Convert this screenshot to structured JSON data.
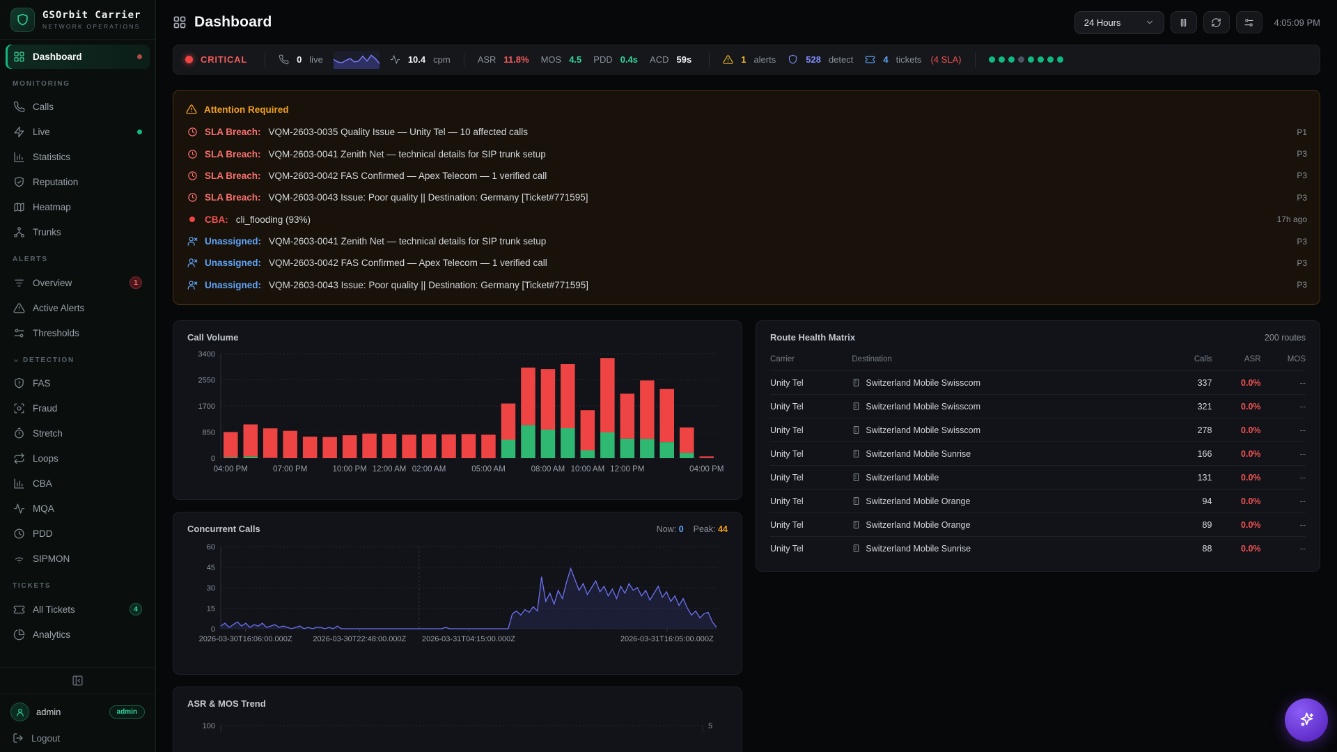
{
  "app": {
    "name": "GSOrbit Carrier",
    "subtitle": "NETWORK OPERATIONS"
  },
  "sidebar": {
    "sections": [
      {
        "label": "",
        "items": [
          {
            "label": "Dashboard",
            "icon": "grid",
            "active": true,
            "right_dot": "#b04a4a"
          }
        ]
      },
      {
        "label": "MONITORING",
        "items": [
          {
            "label": "Calls",
            "icon": "phone"
          },
          {
            "label": "Live",
            "icon": "zap",
            "right_dot": "#10b981"
          },
          {
            "label": "Statistics",
            "icon": "chart"
          },
          {
            "label": "Reputation",
            "icon": "shield-check"
          },
          {
            "label": "Heatmap",
            "icon": "map"
          },
          {
            "label": "Trunks",
            "icon": "network"
          }
        ]
      },
      {
        "label": "ALERTS",
        "items": [
          {
            "label": "Overview",
            "icon": "filter",
            "badge": "1",
            "badge_style": "red"
          },
          {
            "label": "Active Alerts",
            "icon": "alert-triangle"
          },
          {
            "label": "Thresholds",
            "icon": "sliders"
          }
        ]
      },
      {
        "label": "DETECTION",
        "chevron": true,
        "items": [
          {
            "label": "FAS",
            "icon": "shield-alert"
          },
          {
            "label": "Fraud",
            "icon": "scan"
          },
          {
            "label": "Stretch",
            "icon": "timer"
          },
          {
            "label": "Loops",
            "icon": "repeat"
          },
          {
            "label": "CBA",
            "icon": "chart"
          },
          {
            "label": "MQA",
            "icon": "activity"
          },
          {
            "label": "PDD",
            "icon": "clock"
          },
          {
            "label": "SIPMON",
            "icon": "wifi"
          }
        ]
      },
      {
        "label": "TICKETS",
        "items": [
          {
            "label": "All Tickets",
            "icon": "ticket",
            "badge": "4",
            "badge_style": "green"
          },
          {
            "label": "Analytics",
            "icon": "pie"
          }
        ]
      }
    ],
    "user": {
      "name": "admin",
      "badge": "admin"
    },
    "logout": "Logout"
  },
  "header": {
    "title": "Dashboard",
    "range": "24 Hours",
    "clock": "4:05:09 PM"
  },
  "statusbar": {
    "status": "CRITICAL",
    "live": {
      "value": "0",
      "label": "live"
    },
    "sparkline": [
      9,
      6,
      5,
      8,
      10,
      6,
      7,
      13,
      7,
      14,
      10,
      4
    ],
    "cpm": {
      "value": "10.4",
      "label": "cpm"
    },
    "kpis": [
      {
        "label": "ASR",
        "value": "11.8%",
        "color": "#f15b5b"
      },
      {
        "label": "MOS",
        "value": "4.5",
        "color": "#34d399"
      },
      {
        "label": "PDD",
        "value": "0.4s",
        "color": "#34d399"
      },
      {
        "label": "ACD",
        "value": "59s",
        "color": "#f3f4f6"
      }
    ],
    "counters": [
      {
        "icon": "alert-triangle",
        "value": "1",
        "label": "alerts",
        "color": "#fbbf24"
      },
      {
        "icon": "shield",
        "value": "528",
        "label": "detect",
        "color": "#818cf8"
      },
      {
        "icon": "ticket",
        "value": "4",
        "label": "tickets",
        "color": "#60a5fa",
        "suffix": "(4 SLA)",
        "suffix_color": "#f05252"
      }
    ],
    "dots": [
      "#10b981",
      "#10b981",
      "#10b981",
      "#4b5563",
      "#10b981",
      "#10b981",
      "#10b981",
      "#10b981"
    ]
  },
  "attention": {
    "title": "Attention Required",
    "rows": [
      {
        "icon": "clock",
        "label": "SLA Breach:",
        "label_color": "#f87171",
        "text": "VQM-2603-0035 Quality Issue — Unity Tel — 10 affected calls",
        "right": "P1"
      },
      {
        "icon": "clock",
        "label": "SLA Breach:",
        "label_color": "#f87171",
        "text": "VQM-2603-0041 Zenith Net — technical details for SIP trunk setup",
        "right": "P3"
      },
      {
        "icon": "clock",
        "label": "SLA Breach:",
        "label_color": "#f87171",
        "text": "VQM-2603-0042 FAS Confirmed — Apex Telecom — 1 verified call",
        "right": "P3"
      },
      {
        "icon": "clock",
        "label": "SLA Breach:",
        "label_color": "#f87171",
        "text": "VQM-2603-0043 Issue: Poor quality || Destination: Germany [Ticket#771595]",
        "right": "P3"
      },
      {
        "icon": "dot",
        "label": "CBA:",
        "label_color": "#f05252",
        "text": "cli_flooding (93%)",
        "right": "17h ago"
      },
      {
        "icon": "user-x",
        "label": "Unassigned:",
        "label_color": "#60a5fa",
        "text": "VQM-2603-0041 Zenith Net — technical details for SIP trunk setup",
        "right": "P3"
      },
      {
        "icon": "user-x",
        "label": "Unassigned:",
        "label_color": "#60a5fa",
        "text": "VQM-2603-0042 FAS Confirmed — Apex Telecom — 1 verified call",
        "right": "P3"
      },
      {
        "icon": "user-x",
        "label": "Unassigned:",
        "label_color": "#60a5fa",
        "text": "VQM-2603-0043 Issue: Poor quality || Destination: Germany [Ticket#771595]",
        "right": "P3"
      }
    ]
  },
  "chart_data": [
    {
      "id": "call_volume",
      "type": "bar",
      "stacked": true,
      "title": "Call Volume",
      "ylim": [
        0,
        3400
      ],
      "yticks": [
        0,
        850,
        1700,
        2550,
        3400
      ],
      "grid": true,
      "legend": "none",
      "colors": {
        "success": "#2eb872",
        "failed": "#ef4444"
      },
      "series": [
        {
          "name": "success",
          "values": [
            30,
            55,
            10,
            0,
            0,
            0,
            0,
            0,
            0,
            0,
            0,
            0,
            0,
            0,
            600,
            1080,
            930,
            975,
            260,
            840,
            640,
            630,
            520,
            175,
            5
          ]
        },
        {
          "name": "failed",
          "values": [
            820,
            1045,
            960,
            890,
            700,
            690,
            745,
            800,
            790,
            765,
            780,
            775,
            785,
            765,
            1180,
            1870,
            1970,
            2085,
            1300,
            2420,
            1460,
            1900,
            1730,
            825,
            55
          ]
        }
      ],
      "xticks": [
        {
          "index": 0,
          "label": "04:00 PM"
        },
        {
          "index": 3,
          "label": "07:00 PM"
        },
        {
          "index": 6,
          "label": "10:00 PM"
        },
        {
          "index": 8,
          "label": "12:00 AM"
        },
        {
          "index": 10,
          "label": "02:00 AM"
        },
        {
          "index": 13,
          "label": "05:00 AM"
        },
        {
          "index": 16,
          "label": "08:00 AM"
        },
        {
          "index": 18,
          "label": "10:00 AM"
        },
        {
          "index": 20,
          "label": "12:00 PM"
        },
        {
          "index": 24,
          "label": "04:00 PM"
        }
      ]
    },
    {
      "id": "concurrent",
      "type": "line",
      "title": "Concurrent Calls",
      "now_label": "Now:",
      "now": "0",
      "peak_label": "Peak:",
      "peak": "44",
      "ylim": [
        0,
        60
      ],
      "yticks": [
        0,
        15,
        30,
        45,
        60
      ],
      "color": "#6d72f2",
      "vline": 0.4,
      "xlabels": [
        "2026-03-30T16:06:00.000Z",
        "2026-03-30T22:48:00.000Z",
        "2026-03-31T04:15:00.000Z",
        "2026-03-31T16:05:00.000Z"
      ],
      "xlabel_pos": [
        0.05,
        0.28,
        0.5,
        0.9
      ],
      "values": [
        2,
        4,
        1,
        3,
        5,
        2,
        4,
        1,
        3,
        2,
        4,
        1,
        2,
        3,
        1,
        2,
        1,
        0,
        1,
        2,
        0,
        1,
        0,
        1,
        1,
        0,
        1,
        0,
        2,
        0,
        0,
        0,
        0,
        0,
        0,
        0,
        0,
        0,
        0,
        0,
        0,
        0,
        0,
        0,
        0,
        0,
        0,
        0,
        0,
        0,
        0,
        0,
        0,
        0,
        1,
        0,
        0,
        0,
        0,
        0,
        0,
        0,
        0,
        0,
        0,
        0,
        0,
        0,
        0,
        0,
        11,
        13,
        10,
        14,
        12,
        16,
        13,
        38,
        20,
        26,
        18,
        28,
        22,
        34,
        44,
        36,
        28,
        33,
        25,
        30,
        35,
        27,
        31,
        24,
        29,
        22,
        31,
        26,
        33,
        28,
        30,
        24,
        28,
        21,
        26,
        31,
        23,
        27,
        20,
        24,
        17,
        22,
        15,
        10,
        13,
        8,
        11,
        12,
        5,
        1
      ]
    },
    {
      "id": "asr_mos",
      "type": "line",
      "title": "ASR & MOS Trend",
      "left_axis_top": "100",
      "right_axis_top": "5"
    }
  ],
  "route_matrix": {
    "title": "Route Health Matrix",
    "count": "200 routes",
    "headers": [
      "Carrier",
      "Destination",
      "Calls",
      "ASR",
      "MOS"
    ],
    "rows": [
      {
        "carrier": "Unity Tel",
        "destination": "Switzerland Mobile Swisscom",
        "calls": "337",
        "asr": "0.0%",
        "mos": "--"
      },
      {
        "carrier": "Unity Tel",
        "destination": "Switzerland Mobile Swisscom",
        "calls": "321",
        "asr": "0.0%",
        "mos": "--"
      },
      {
        "carrier": "Unity Tel",
        "destination": "Switzerland Mobile Swisscom",
        "calls": "278",
        "asr": "0.0%",
        "mos": "--"
      },
      {
        "carrier": "Unity Tel",
        "destination": "Switzerland Mobile Sunrise",
        "calls": "166",
        "asr": "0.0%",
        "mos": "--"
      },
      {
        "carrier": "Unity Tel",
        "destination": "Switzerland Mobile",
        "calls": "131",
        "asr": "0.0%",
        "mos": "--"
      },
      {
        "carrier": "Unity Tel",
        "destination": "Switzerland Mobile Orange",
        "calls": "94",
        "asr": "0.0%",
        "mos": "--"
      },
      {
        "carrier": "Unity Tel",
        "destination": "Switzerland Mobile Orange",
        "calls": "89",
        "asr": "0.0%",
        "mos": "--"
      },
      {
        "carrier": "Unity Tel",
        "destination": "Switzerland Mobile Sunrise",
        "calls": "88",
        "asr": "0.0%",
        "mos": "--"
      }
    ]
  }
}
